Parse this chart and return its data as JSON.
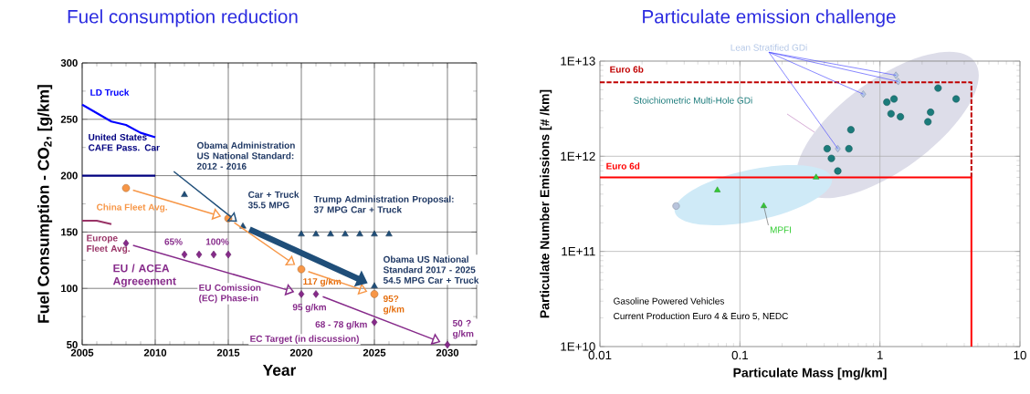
{
  "chart_data": [
    {
      "type": "line",
      "title": "Fuel consumption reduction",
      "xlabel": "Year",
      "ylabel": "Fuel Consumption - CO$_{2}$, [g/km]",
      "xlim": [
        2005,
        2032
      ],
      "ylim": [
        50,
        300
      ],
      "xticks": [
        2005,
        2010,
        2015,
        2020,
        2025,
        2030
      ],
      "yticks": [
        50,
        100,
        150,
        200,
        250,
        300
      ],
      "grid": true,
      "legend": false,
      "series": [
        {
          "name": "LD Truck",
          "type": "line",
          "color": "#0000ff",
          "x": [
            2005,
            2007,
            2008,
            2009,
            2010
          ],
          "values": [
            263,
            248,
            245,
            238,
            234
          ]
        },
        {
          "name": "United States CAFE Pass. Car",
          "type": "line",
          "color": "#000080",
          "x": [
            2005,
            2010
          ],
          "values": [
            200,
            200
          ]
        },
        {
          "name": "Europe Fleet Avg.",
          "type": "line",
          "color": "#993366",
          "x": [
            2005,
            2006,
            2007
          ],
          "values": [
            160,
            160,
            157
          ]
        },
        {
          "name": "China Fleet Avg.",
          "type": "scatter",
          "marker": "circle",
          "color": "#f79646",
          "x": [
            2008,
            2015,
            2020,
            2025
          ],
          "values": [
            189,
            162,
            117,
            95
          ]
        },
        {
          "type": "scatter",
          "marker": "triangle",
          "color": "#1f4e79",
          "x": [
            2012,
            2016,
            2020,
            2021,
            2022,
            2023,
            2024,
            2025,
            2026,
            2025
          ],
          "values": [
            183,
            155,
            148,
            148,
            148,
            148,
            148,
            148,
            148,
            102
          ]
        },
        {
          "type": "scatter",
          "marker": "diamond",
          "color": "#862a8a",
          "x": [
            2008,
            2012,
            2013,
            2014,
            2015,
            2020,
            2021,
            2025,
            2030
          ],
          "values": [
            140,
            130,
            130,
            130,
            130,
            95,
            95,
            70,
            50
          ]
        }
      ],
      "annotations": [
        "Obama Administration US National Standard: 2012 - 2016",
        "Car + Truck 35.5 MPG",
        "Trump Administration Proposal: 37 MPG Car + Truck",
        "Obama US National Standard 2017 - 2025 54.5 MPG Car + Truck",
        "65%",
        "100%",
        "EU / ACEA Agreeement",
        "EU Comission (EC) Phase-in",
        "EC Target (in discussion)",
        {
          "text": "117 g/km",
          "x": 2020,
          "y": 117
        },
        {
          "text": "95? g/km",
          "x": 2025,
          "y": 95
        },
        {
          "text": "95 g/km",
          "x": 2020,
          "y": 95
        },
        {
          "text": "68 - 78 g/km",
          "x": 2025,
          "y": 70
        },
        {
          "text": "50 ? g/km",
          "x": 2030,
          "y": 50
        }
      ]
    },
    {
      "type": "scatter",
      "title": "Particulate emission challenge",
      "xlabel": "Particulate Mass [mg/km]",
      "ylabel": "Particulate Number Emissions [# /km]",
      "log": "xy",
      "xlim": [
        0.01,
        10
      ],
      "ylim": [
        10000000000.0,
        10000000000000.0
      ],
      "xticks": [
        0.01,
        0.1,
        1,
        10
      ],
      "yticks": [
        {
          "value": 10000000000.0,
          "label": "1E+10"
        },
        {
          "value": 100000000000.0,
          "label": "1E+11"
        },
        {
          "value": 1000000000000.0,
          "label": "1E+12"
        },
        {
          "value": 10000000000000.0,
          "label": "1E+13"
        }
      ],
      "grid": true,
      "legend": false,
      "series": [
        {
          "name": "Lean Stratified GDi",
          "marker": "diamond",
          "color": "#b4c7e7",
          "x": [
            1.3,
            1.35,
            0.76,
            0.5
          ],
          "values": [
            7100000000000.0,
            6100000000000.0,
            4500000000000.0,
            1200000000000.0
          ]
        },
        {
          "name": "Stoichiometric Multi-Hole GDi",
          "marker": "circle",
          "color": "#1b7b7b",
          "x": [
            2.6,
            3.5,
            1.12,
            1.26,
            1.2,
            1.4,
            2.3,
            2.2,
            0.62,
            0.42,
            0.6,
            0.45,
            0.5
          ],
          "values": [
            5200000000000.0,
            4000000000000.0,
            3700000000000.0,
            4000000000000.0,
            2800000000000.0,
            2600000000000.0,
            2900000000000.0,
            2300000000000.0,
            1900000000000.0,
            1200000000000.0,
            1200000000000.0,
            950000000000.0,
            700000000000.0
          ]
        },
        {
          "name": "MPFI",
          "marker": "triangle",
          "color": "#33cc33",
          "x": [
            0.069,
            0.148,
            0.35
          ],
          "values": [
            440000000000.0,
            300000000000.0,
            600000000000.0
          ]
        },
        {
          "marker": "circle",
          "color": "#b8c4dc",
          "x": [
            0.035
          ],
          "values": [
            300000000000.0
          ]
        },
        {
          "name": "Euro 6b",
          "type": "line",
          "line_style": "dashed",
          "color": "#c00000",
          "x": [
            0.01,
            4.5,
            4.5
          ],
          "values": [
            6000000000000.0,
            6000000000000.0,
            600000000000.0
          ]
        },
        {
          "name": "Euro 6d",
          "type": "line",
          "line_style": "solid",
          "color": "#ff0000",
          "x": [
            0.01,
            4.5,
            4.5
          ],
          "values": [
            600000000000.0,
            600000000000.0,
            10000000000.0
          ]
        }
      ],
      "annotations": [
        "Gasoline Powered Vehicles",
        "Current Production Euro 4 & Euro 5, NEDC"
      ]
    }
  ]
}
